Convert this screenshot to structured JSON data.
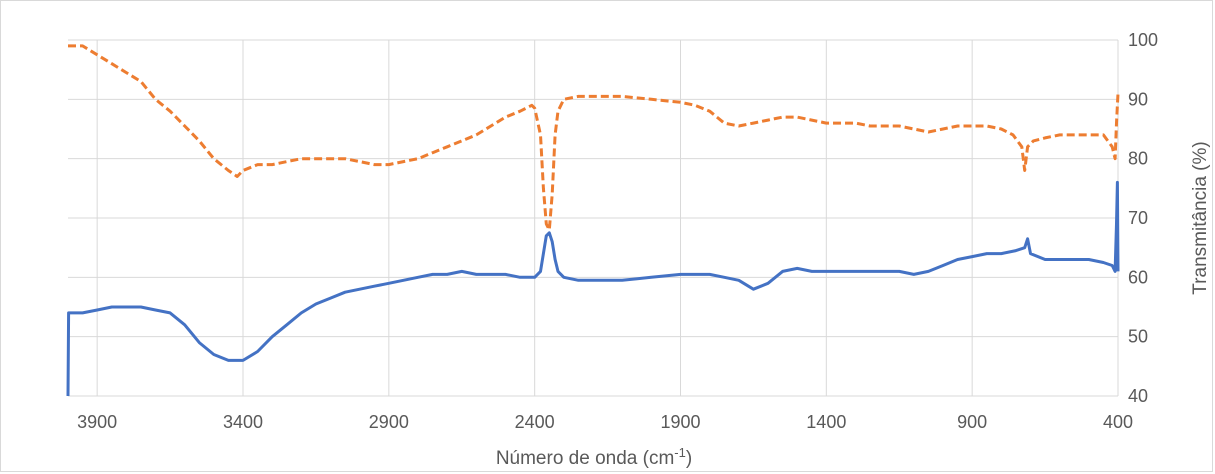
{
  "chart_data": {
    "type": "line",
    "xlabel_prefix": "Número de onda (cm",
    "xlabel_sup": "-1",
    "xlabel_suffix": ")",
    "ylabel": "Transmitância (%)",
    "xlim": [
      4000,
      400
    ],
    "x_reversed": true,
    "ylim": [
      40,
      100
    ],
    "x_ticks": [
      3900,
      3400,
      2900,
      2400,
      1900,
      1400,
      900,
      400
    ],
    "y_ticks": [
      40,
      50,
      60,
      70,
      80,
      90,
      100
    ],
    "grid": true,
    "legend": "none",
    "series": [
      {
        "color": "#ED7D31",
        "style": "dashed",
        "points": [
          [
            4000,
            99
          ],
          [
            3950,
            99
          ],
          [
            3900,
            97.5
          ],
          [
            3850,
            96
          ],
          [
            3800,
            94.5
          ],
          [
            3750,
            93
          ],
          [
            3700,
            90
          ],
          [
            3650,
            88
          ],
          [
            3600,
            85.5
          ],
          [
            3550,
            83
          ],
          [
            3500,
            80
          ],
          [
            3450,
            78
          ],
          [
            3420,
            77
          ],
          [
            3400,
            78
          ],
          [
            3350,
            79
          ],
          [
            3300,
            79
          ],
          [
            3250,
            79.5
          ],
          [
            3200,
            80
          ],
          [
            3150,
            80
          ],
          [
            3100,
            80
          ],
          [
            3050,
            80
          ],
          [
            3000,
            79.5
          ],
          [
            2950,
            79
          ],
          [
            2900,
            79
          ],
          [
            2850,
            79.5
          ],
          [
            2800,
            80
          ],
          [
            2750,
            81
          ],
          [
            2700,
            82
          ],
          [
            2650,
            83
          ],
          [
            2600,
            84
          ],
          [
            2550,
            85.5
          ],
          [
            2500,
            87
          ],
          [
            2450,
            88
          ],
          [
            2410,
            89
          ],
          [
            2400,
            88.5
          ],
          [
            2380,
            84
          ],
          [
            2370,
            75
          ],
          [
            2360,
            69
          ],
          [
            2350,
            68
          ],
          [
            2340,
            74
          ],
          [
            2330,
            84
          ],
          [
            2320,
            88
          ],
          [
            2300,
            90
          ],
          [
            2250,
            90.5
          ],
          [
            2200,
            90.5
          ],
          [
            2100,
            90.5
          ],
          [
            2000,
            90
          ],
          [
            1900,
            89.5
          ],
          [
            1850,
            89
          ],
          [
            1800,
            88
          ],
          [
            1750,
            86
          ],
          [
            1700,
            85.5
          ],
          [
            1650,
            86
          ],
          [
            1600,
            86.5
          ],
          [
            1550,
            87
          ],
          [
            1500,
            87
          ],
          [
            1450,
            86.5
          ],
          [
            1400,
            86
          ],
          [
            1350,
            86
          ],
          [
            1300,
            86
          ],
          [
            1250,
            85.5
          ],
          [
            1200,
            85.5
          ],
          [
            1150,
            85.5
          ],
          [
            1100,
            85
          ],
          [
            1050,
            84.5
          ],
          [
            1000,
            85
          ],
          [
            950,
            85.5
          ],
          [
            900,
            85.5
          ],
          [
            850,
            85.5
          ],
          [
            800,
            85
          ],
          [
            760,
            84
          ],
          [
            730,
            82
          ],
          [
            720,
            78
          ],
          [
            710,
            82
          ],
          [
            690,
            83
          ],
          [
            650,
            83.5
          ],
          [
            600,
            84
          ],
          [
            550,
            84
          ],
          [
            500,
            84
          ],
          [
            450,
            84
          ],
          [
            420,
            82
          ],
          [
            410,
            80
          ],
          [
            405,
            86
          ],
          [
            400,
            91
          ]
        ]
      },
      {
        "color": "#4472C4",
        "style": "solid",
        "points": [
          [
            4000,
            40
          ],
          [
            3998,
            54
          ],
          [
            3950,
            54
          ],
          [
            3900,
            54.5
          ],
          [
            3850,
            55
          ],
          [
            3800,
            55
          ],
          [
            3750,
            55
          ],
          [
            3700,
            54.5
          ],
          [
            3650,
            54
          ],
          [
            3600,
            52
          ],
          [
            3550,
            49
          ],
          [
            3500,
            47
          ],
          [
            3450,
            46
          ],
          [
            3400,
            46
          ],
          [
            3350,
            47.5
          ],
          [
            3300,
            50
          ],
          [
            3250,
            52
          ],
          [
            3200,
            54
          ],
          [
            3150,
            55.5
          ],
          [
            3100,
            56.5
          ],
          [
            3050,
            57.5
          ],
          [
            3000,
            58
          ],
          [
            2950,
            58.5
          ],
          [
            2900,
            59
          ],
          [
            2850,
            59.5
          ],
          [
            2800,
            60
          ],
          [
            2750,
            60.5
          ],
          [
            2700,
            60.5
          ],
          [
            2650,
            61
          ],
          [
            2600,
            60.5
          ],
          [
            2550,
            60.5
          ],
          [
            2500,
            60.5
          ],
          [
            2450,
            60
          ],
          [
            2400,
            60
          ],
          [
            2380,
            61
          ],
          [
            2370,
            64
          ],
          [
            2360,
            67
          ],
          [
            2350,
            67.5
          ],
          [
            2340,
            66
          ],
          [
            2330,
            63
          ],
          [
            2320,
            61
          ],
          [
            2300,
            60
          ],
          [
            2250,
            59.5
          ],
          [
            2200,
            59.5
          ],
          [
            2100,
            59.5
          ],
          [
            2000,
            60
          ],
          [
            1900,
            60.5
          ],
          [
            1850,
            60.5
          ],
          [
            1800,
            60.5
          ],
          [
            1750,
            60
          ],
          [
            1700,
            59.5
          ],
          [
            1650,
            58
          ],
          [
            1600,
            59
          ],
          [
            1550,
            61
          ],
          [
            1500,
            61.5
          ],
          [
            1450,
            61
          ],
          [
            1400,
            61
          ],
          [
            1350,
            61
          ],
          [
            1300,
            61
          ],
          [
            1250,
            61
          ],
          [
            1200,
            61
          ],
          [
            1150,
            61
          ],
          [
            1100,
            60.5
          ],
          [
            1050,
            61
          ],
          [
            1000,
            62
          ],
          [
            950,
            63
          ],
          [
            900,
            63.5
          ],
          [
            850,
            64
          ],
          [
            800,
            64
          ],
          [
            750,
            64.5
          ],
          [
            720,
            65
          ],
          [
            710,
            66.5
          ],
          [
            700,
            64
          ],
          [
            650,
            63
          ],
          [
            600,
            63
          ],
          [
            550,
            63
          ],
          [
            500,
            63
          ],
          [
            450,
            62.5
          ],
          [
            420,
            62
          ],
          [
            410,
            61
          ],
          [
            405,
            69
          ],
          [
            402,
            76
          ],
          [
            400,
            61
          ]
        ]
      }
    ]
  }
}
